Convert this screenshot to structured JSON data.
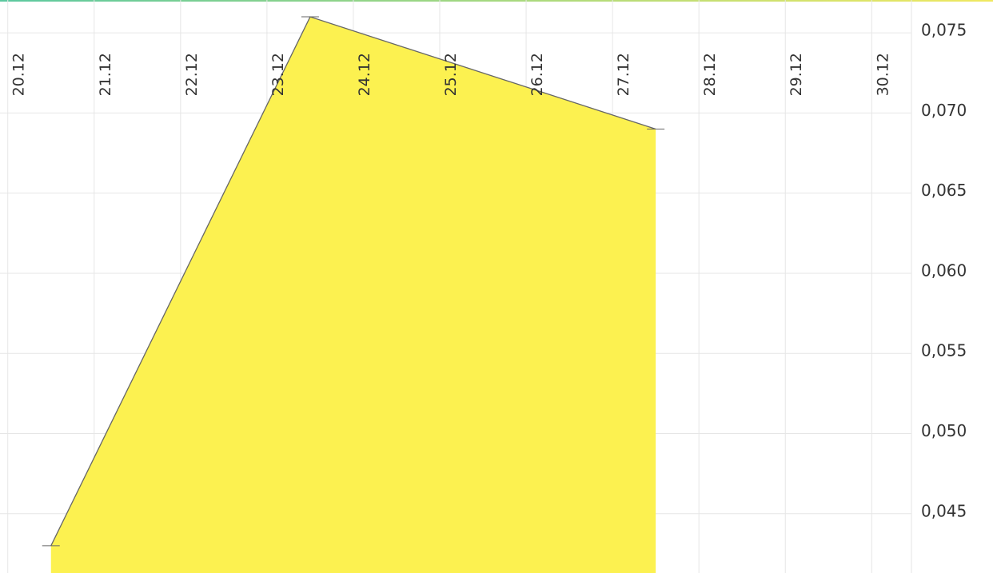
{
  "chart_data": {
    "type": "area",
    "x": [
      20.5,
      23.5,
      27.5
    ],
    "values": [
      0.043,
      0.076,
      0.069
    ],
    "color": "#fcf150",
    "line_color": "#666666",
    "xlim": [
      19.91,
      30.46
    ],
    "xticks": [
      {
        "value": 20,
        "label": "20.12"
      },
      {
        "value": 21,
        "label": "21.12"
      },
      {
        "value": 22,
        "label": "22.12"
      },
      {
        "value": 23,
        "label": "23.12"
      },
      {
        "value": 24,
        "label": "24.12"
      },
      {
        "value": 25,
        "label": "25.12"
      },
      {
        "value": 26,
        "label": "26.12"
      },
      {
        "value": 27,
        "label": "27.12"
      },
      {
        "value": 28,
        "label": "28.12"
      },
      {
        "value": 29,
        "label": "29.12"
      },
      {
        "value": 30,
        "label": "30.12"
      }
    ],
    "ylim": [
      0.0413,
      0.07705
    ],
    "yticks": [
      {
        "value": 0.045,
        "label": "0,045"
      },
      {
        "value": 0.05,
        "label": "0,050"
      },
      {
        "value": 0.055,
        "label": "0,055"
      },
      {
        "value": 0.06,
        "label": "0,060"
      },
      {
        "value": 0.065,
        "label": "0,065"
      },
      {
        "value": 0.07,
        "label": "0,070"
      },
      {
        "value": 0.075,
        "label": "0,075"
      }
    ],
    "grid": true
  }
}
